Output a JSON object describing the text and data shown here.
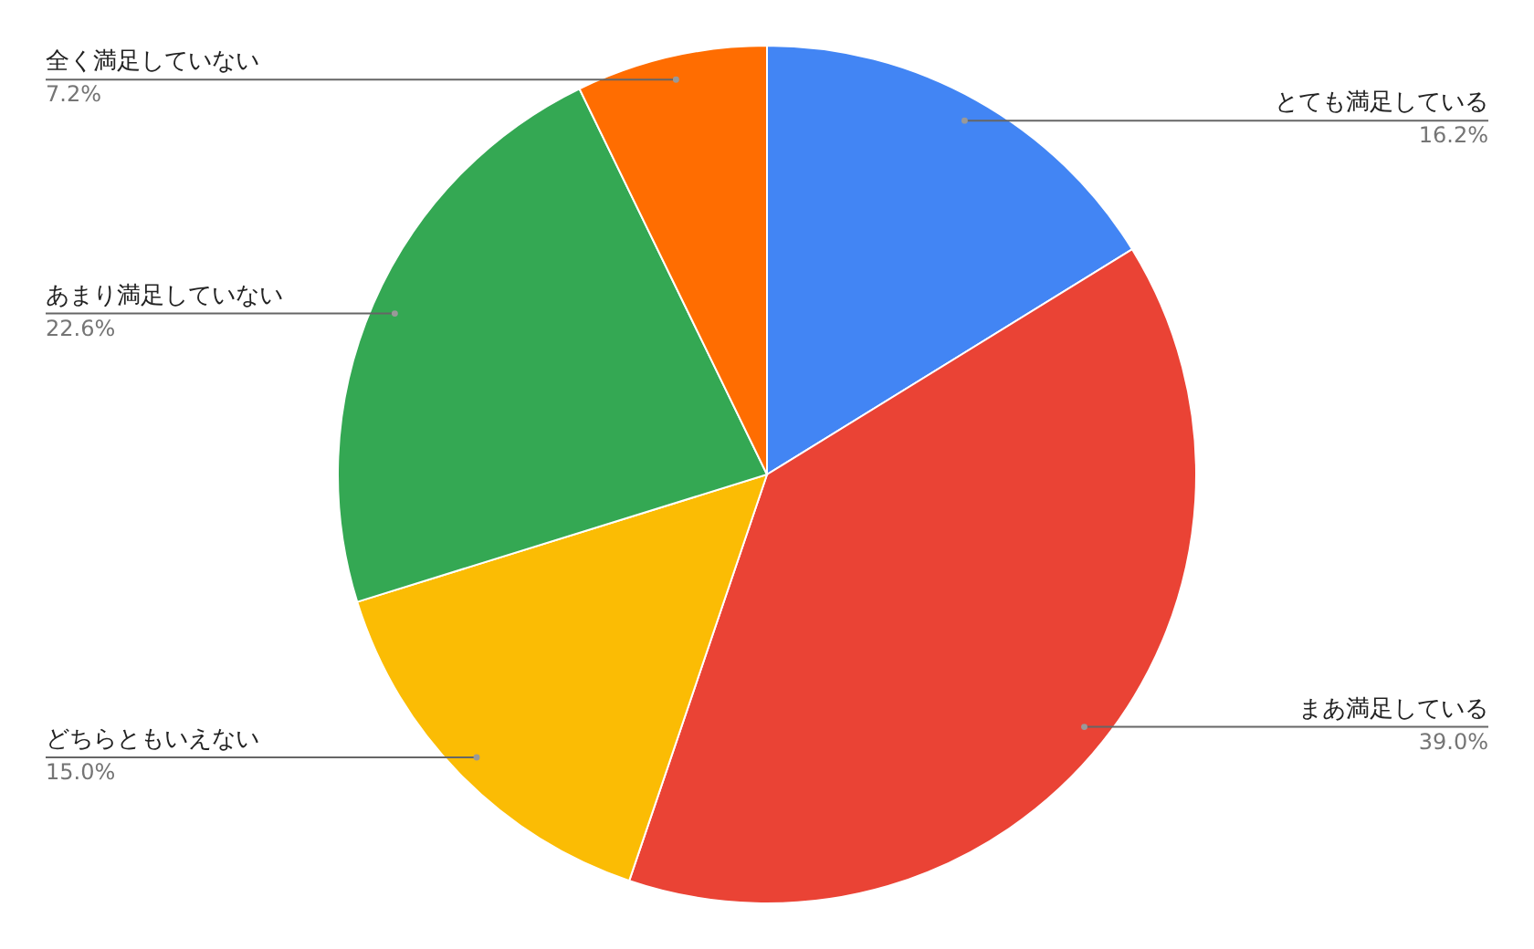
{
  "chart_data": {
    "type": "pie",
    "categories": [
      "とても満足している",
      "まあ満足している",
      "どちらともいえない",
      "あまり満足していない",
      "全く満足していない"
    ],
    "values": [
      16.2,
      39.0,
      15.0,
      22.6,
      7.2
    ],
    "colors": [
      "#4285f4",
      "#ea4335",
      "#fbbc04",
      "#34a853",
      "#ff6d01"
    ],
    "value_labels": [
      "16.2%",
      "39.0%",
      "15.0%",
      "22.6%",
      "7.2%"
    ]
  }
}
